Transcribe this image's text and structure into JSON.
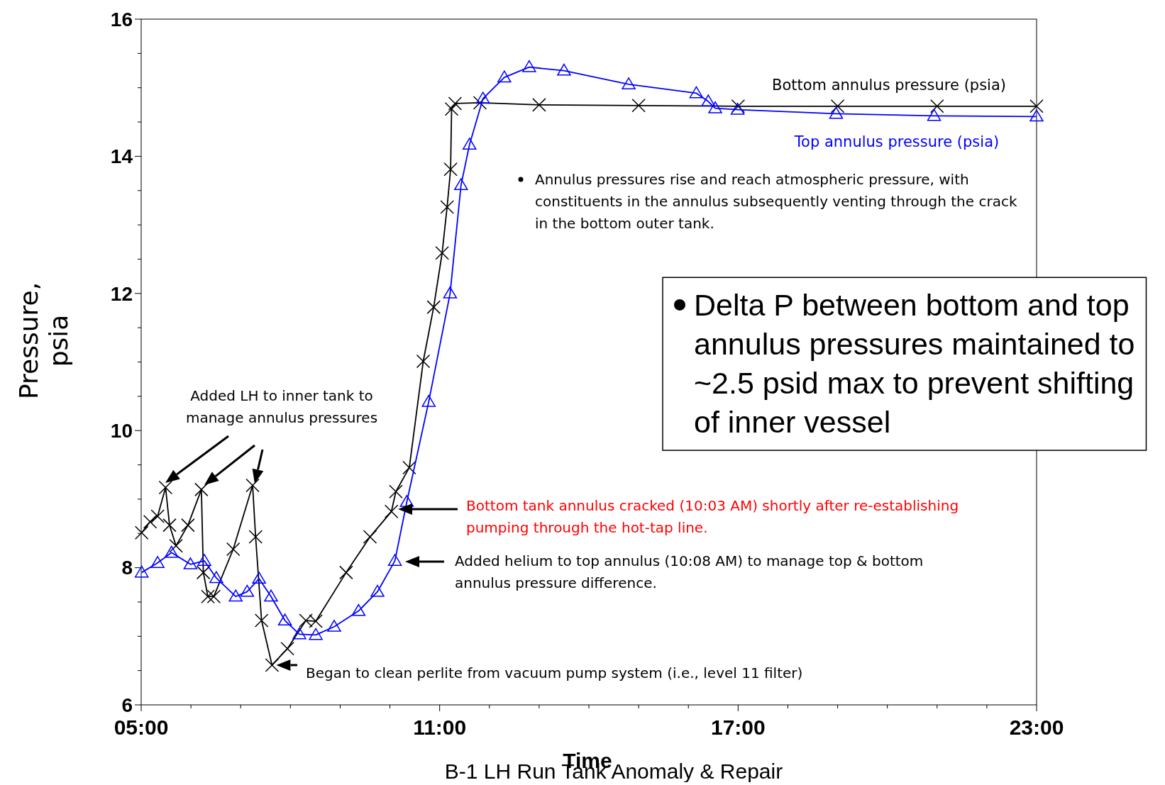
{
  "chart_data": {
    "type": "line",
    "title": "B-1 LH Run Tank Anomaly & Repair",
    "xlabel": "Time",
    "ylabel": "Pressure, psia",
    "xlim": [
      5,
      23
    ],
    "ylim": [
      6,
      16
    ],
    "xticks": [
      {
        "value": 5,
        "label": "05:00"
      },
      {
        "value": 6,
        "label": null
      },
      {
        "value": 7,
        "label": null
      },
      {
        "value": 8,
        "label": null
      },
      {
        "value": 9,
        "label": null
      },
      {
        "value": 10,
        "label": null
      },
      {
        "value": 11,
        "label": "11:00"
      },
      {
        "value": 12,
        "label": null
      },
      {
        "value": 13,
        "label": null
      },
      {
        "value": 14,
        "label": null
      },
      {
        "value": 15,
        "label": null
      },
      {
        "value": 16,
        "label": null
      },
      {
        "value": 17,
        "label": "17:00"
      },
      {
        "value": 18,
        "label": null
      },
      {
        "value": 19,
        "label": null
      },
      {
        "value": 20,
        "label": null
      },
      {
        "value": 21,
        "label": null
      },
      {
        "value": 22,
        "label": null
      },
      {
        "value": 23,
        "label": "23:00"
      }
    ],
    "yticks": [
      6,
      {
        "value": 6.5,
        "label": null
      },
      {
        "value": 7,
        "label": null
      },
      {
        "value": 7.5,
        "label": null
      },
      8,
      {
        "value": 8.5,
        "label": null
      },
      {
        "value": 9,
        "label": null
      },
      {
        "value": 9.5,
        "label": null
      },
      10,
      {
        "value": 10.5,
        "label": null
      },
      {
        "value": 11,
        "label": null
      },
      {
        "value": 11.5,
        "label": null
      },
      12,
      {
        "value": 12.5,
        "label": null
      },
      {
        "value": 13,
        "label": null
      },
      {
        "value": 13.5,
        "label": null
      },
      14,
      {
        "value": 14.5,
        "label": null
      },
      {
        "value": 15,
        "label": null
      },
      {
        "value": 15.5,
        "label": null
      },
      16
    ],
    "grid": false,
    "legend": false,
    "line_style": "solid",
    "series": [
      {
        "name": "Bottom annulus pressure (psia)",
        "color": "#000000",
        "marker": "cross",
        "x": [
          5.01,
          5.18,
          5.33,
          5.49,
          5.57,
          5.7,
          5.94,
          6.21,
          6.25,
          6.34,
          6.46,
          6.85,
          7.24,
          7.3,
          7.42,
          7.63,
          7.94,
          8.31,
          8.51,
          9.12,
          9.6,
          10.03,
          10.12,
          10.39,
          10.67,
          10.88,
          11.05,
          11.15,
          11.22,
          11.24,
          11.31,
          11.81,
          13,
          15,
          17,
          19,
          21,
          23
        ],
        "values": [
          8.51,
          8.67,
          8.75,
          9.17,
          8.62,
          8.32,
          8.62,
          9.14,
          7.93,
          7.58,
          7.58,
          8.27,
          9.2,
          8.45,
          7.23,
          6.58,
          6.82,
          7.23,
          7.22,
          7.93,
          8.45,
          8.82,
          9.11,
          9.46,
          11.01,
          11.8,
          12.59,
          13.26,
          13.81,
          14.69,
          14.77,
          14.78,
          14.75,
          14.74,
          14.73,
          14.73,
          14.73,
          14.73
        ]
      },
      {
        "name": "Top annulus pressure (psia)",
        "color": "#0000ff",
        "marker": "triangle",
        "x": [
          5.01,
          5.33,
          5.61,
          5.99,
          6.27,
          6.51,
          6.9,
          7.13,
          7.37,
          7.61,
          7.89,
          8.18,
          8.51,
          8.88,
          9.37,
          9.75,
          10.1,
          10.34,
          10.78,
          11.21,
          11.43,
          11.6,
          11.87,
          12.3,
          12.8,
          13.5,
          14.8,
          16.16,
          16.4,
          16.54,
          16.99,
          18.97,
          20.94,
          23
        ],
        "values": [
          7.93,
          8.07,
          8.22,
          8.05,
          8.1,
          7.85,
          7.58,
          7.65,
          7.84,
          7.58,
          7.23,
          7.03,
          7.02,
          7.14,
          7.37,
          7.65,
          8.1,
          8.96,
          10.42,
          12.0,
          13.58,
          14.17,
          14.84,
          15.15,
          15.3,
          15.25,
          15.05,
          14.92,
          14.8,
          14.7,
          14.68,
          14.62,
          14.59,
          14.58
        ]
      }
    ],
    "annotations": [
      "Added LH to inner tank to manage annulus pressures",
      "Annulus pressures rise and reach atmospheric pressure, with constituents in the annulus subsequently venting through the crack in the bottom outer tank.",
      "Bottom tank annulus cracked (10:03 AM) shortly after re-establishing pumping through the hot-tap line.",
      "Added helium to top annulus (10:08 AM) to manage top & bottom annulus pressure difference.",
      {
        "text": "Began to clean perlite from vacuum pump system (i.e., level 11 filter)",
        "x": 7.63,
        "y": 6.58
      },
      "Delta P between bottom and top annulus pressures maintained to ~2.5 psid max to prevent shifting of inner vessel"
    ]
  }
}
